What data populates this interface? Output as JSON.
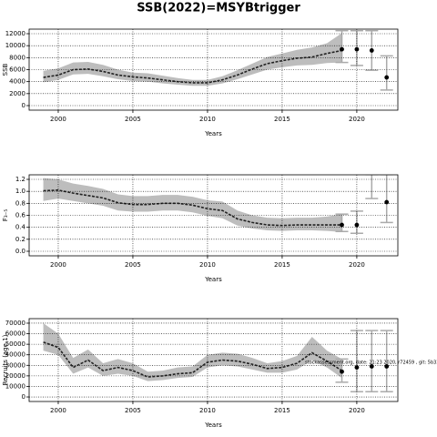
{
  "title": "SSB(2022)=MSYBtrigger",
  "chart_data": [
    {
      "type": "line",
      "ylabel": "SSB",
      "xlabel": "Years",
      "x": [
        1999,
        2000,
        2001,
        2002,
        2003,
        2004,
        2005,
        2006,
        2007,
        2008,
        2009,
        2010,
        2011,
        2012,
        2013,
        2014,
        2015,
        2016,
        2017,
        2018,
        2019,
        2020,
        2021,
        2022
      ],
      "values": [
        4700,
        5100,
        6000,
        6100,
        5700,
        5100,
        4800,
        4600,
        4300,
        4000,
        3800,
        3800,
        4300,
        5100,
        6100,
        7000,
        7500,
        7900,
        8100,
        8700,
        9200,
        null,
        null,
        null
      ],
      "lower": [
        3900,
        4300,
        5200,
        5300,
        4900,
        4400,
        4100,
        4000,
        3700,
        3500,
        3300,
        3300,
        3700,
        4400,
        5200,
        6000,
        6400,
        6700,
        6800,
        7100,
        7200,
        null,
        null,
        null
      ],
      "upper": [
        5800,
        6200,
        7200,
        7300,
        6800,
        6000,
        5500,
        5400,
        5000,
        4600,
        4300,
        4300,
        4900,
        5900,
        7000,
        8100,
        8700,
        9300,
        9700,
        10400,
        12100,
        null,
        null,
        null
      ],
      "points": [
        null,
        null,
        null,
        null,
        null,
        null,
        null,
        null,
        null,
        null,
        null,
        null,
        null,
        null,
        null,
        null,
        null,
        null,
        null,
        null,
        9400,
        9400,
        9200,
        4700
      ],
      "err_low": [
        null,
        null,
        null,
        null,
        null,
        null,
        null,
        null,
        null,
        null,
        null,
        null,
        null,
        null,
        null,
        null,
        null,
        null,
        null,
        null,
        7200,
        6700,
        5900,
        2600
      ],
      "err_high": [
        null,
        null,
        null,
        null,
        null,
        null,
        null,
        null,
        null,
        null,
        null,
        null,
        null,
        null,
        null,
        null,
        null,
        null,
        null,
        null,
        12500,
        12500,
        12500,
        8300
      ],
      "xlim": [
        1998.05,
        2022.75
      ],
      "xticks": [
        2000,
        2005,
        2010,
        2015,
        2020
      ],
      "ylim": [
        -760,
        12760
      ],
      "yticks": [
        0,
        2000,
        4000,
        6000,
        8000,
        10000,
        12000
      ],
      "grid": true,
      "line_color": "#222222",
      "band_color": "#bdbdbd",
      "point_color": "#000000",
      "errorbar_color": "#aaaaaa"
    },
    {
      "type": "line",
      "ylabel": "F₃₋₅",
      "xlabel": "Years",
      "x": [
        1999,
        2000,
        2001,
        2002,
        2003,
        2004,
        2005,
        2006,
        2007,
        2008,
        2009,
        2010,
        2011,
        2012,
        2013,
        2014,
        2015,
        2016,
        2017,
        2018,
        2019,
        2020,
        2021,
        2022
      ],
      "values": [
        1.01,
        1.02,
        0.97,
        0.93,
        0.89,
        0.81,
        0.78,
        0.78,
        0.8,
        0.8,
        0.77,
        0.71,
        0.68,
        0.54,
        0.48,
        0.44,
        0.43,
        0.44,
        0.44,
        0.44,
        0.44,
        null,
        null,
        null
      ],
      "lower": [
        0.84,
        0.88,
        0.84,
        0.8,
        0.76,
        0.68,
        0.66,
        0.66,
        0.68,
        0.68,
        0.65,
        0.59,
        0.55,
        0.43,
        0.38,
        0.35,
        0.34,
        0.35,
        0.35,
        0.34,
        0.32,
        null,
        null,
        null
      ],
      "upper": [
        1.22,
        1.2,
        1.13,
        1.09,
        1.04,
        0.95,
        0.92,
        0.92,
        0.94,
        0.94,
        0.91,
        0.85,
        0.83,
        0.68,
        0.6,
        0.56,
        0.55,
        0.56,
        0.56,
        0.58,
        0.62,
        null,
        null,
        null
      ],
      "points": [
        null,
        null,
        null,
        null,
        null,
        null,
        null,
        null,
        null,
        null,
        null,
        null,
        null,
        null,
        null,
        null,
        null,
        null,
        null,
        null,
        0.44,
        0.44,
        null,
        0.82
      ],
      "err_low": [
        null,
        null,
        null,
        null,
        null,
        null,
        null,
        null,
        null,
        null,
        null,
        null,
        null,
        null,
        null,
        null,
        null,
        null,
        null,
        null,
        0.33,
        0.3,
        0.88,
        0.48
      ],
      "err_high": [
        null,
        null,
        null,
        null,
        null,
        null,
        null,
        null,
        null,
        null,
        null,
        null,
        null,
        null,
        null,
        null,
        null,
        null,
        null,
        null,
        0.62,
        0.67,
        1.28,
        1.28
      ],
      "xlim": [
        1998.05,
        2022.75
      ],
      "xticks": [
        2000,
        2005,
        2010,
        2015,
        2020
      ],
      "ylim": [
        -0.076,
        1.276
      ],
      "yticks": [
        {
          "value": 0,
          "label": "0.0"
        },
        0.2,
        0.4,
        0.6,
        0.8,
        {
          "value": 1,
          "label": "1.0"
        },
        1.2
      ],
      "grid": true,
      "line_color": "#222222",
      "band_color": "#bdbdbd",
      "point_color": "#000000",
      "errorbar_color": "#aaaaaa"
    },
    {
      "type": "line",
      "ylabel": "Recruits (age 1)",
      "xlabel": "Years",
      "annotation": "stockassessment.org, date: 21:23 2020, r72459 , git: 5b33",
      "x": [
        1999,
        2000,
        2001,
        2002,
        2003,
        2004,
        2005,
        2006,
        2007,
        2008,
        2009,
        2010,
        2011,
        2012,
        2013,
        2014,
        2015,
        2016,
        2017,
        2018,
        2019,
        2020,
        2021,
        2022
      ],
      "values": [
        52000,
        47000,
        28000,
        35000,
        25000,
        28000,
        25000,
        19000,
        20000,
        22000,
        23000,
        33000,
        35000,
        34000,
        31000,
        27000,
        28000,
        32000,
        42000,
        34000,
        25000,
        null,
        null,
        null
      ],
      "lower": [
        44000,
        40000,
        22000,
        28000,
        20000,
        22000,
        20000,
        15000,
        16000,
        18000,
        19000,
        28000,
        30000,
        29000,
        26000,
        23000,
        23000,
        26000,
        35000,
        28000,
        18000,
        null,
        null,
        null
      ],
      "upper": [
        70000,
        60000,
        37000,
        45000,
        32000,
        36000,
        32000,
        24000,
        25000,
        28000,
        29000,
        40000,
        42000,
        41000,
        37000,
        32000,
        34000,
        39000,
        57000,
        44000,
        36000,
        null,
        null,
        null
      ],
      "points": [
        null,
        null,
        null,
        null,
        null,
        null,
        null,
        null,
        null,
        null,
        null,
        null,
        null,
        null,
        null,
        null,
        null,
        null,
        null,
        null,
        24000,
        28000,
        29000,
        29000
      ],
      "err_low": [
        null,
        null,
        null,
        null,
        null,
        null,
        null,
        null,
        null,
        null,
        null,
        null,
        null,
        null,
        null,
        null,
        null,
        null,
        null,
        null,
        14000,
        5000,
        5000,
        5000
      ],
      "err_high": [
        null,
        null,
        null,
        null,
        null,
        null,
        null,
        null,
        null,
        null,
        null,
        null,
        null,
        null,
        null,
        null,
        null,
        null,
        null,
        null,
        36000,
        63000,
        63000,
        63000
      ],
      "xlim": [
        1998.05,
        2022.75
      ],
      "xticks": [
        2000,
        2005,
        2010,
        2015,
        2020
      ],
      "ylim": [
        -4300,
        74300
      ],
      "yticks": [
        0,
        10000,
        20000,
        30000,
        40000,
        50000,
        60000,
        70000
      ],
      "grid": true,
      "line_color": "#222222",
      "band_color": "#bdbdbd",
      "point_color": "#000000",
      "errorbar_color": "#aaaaaa"
    }
  ]
}
